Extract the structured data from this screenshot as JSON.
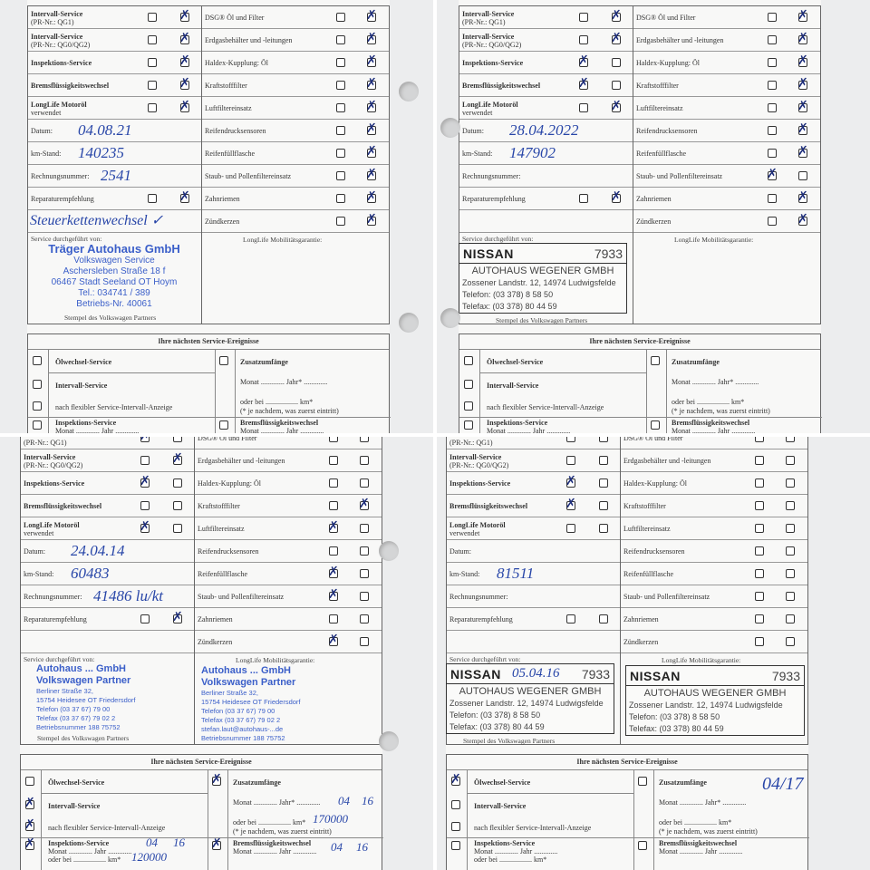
{
  "form": {
    "left_items": [
      {
        "label": "Intervall-Service",
        "sub": "(PR-Nr.: QG1)"
      },
      {
        "label": "Intervall-Service",
        "sub": "(PR-Nr.: QG0/QG2)"
      },
      {
        "label": "Inspektions-Service",
        "sub": ""
      },
      {
        "label": "Bremsflüssigkeitswechsel",
        "sub": ""
      },
      {
        "label": "LongLife Motoröl",
        "sub": "verwendet"
      }
    ],
    "fields": [
      "Datum:",
      "km-Stand:",
      "Rechnungsnummer:"
    ],
    "repair_label": "Reparaturempfehlung",
    "service_by_label": "Service durchgeführt von:",
    "stamp_caption": "Stempel des Volkswagen Partners",
    "right_items": [
      "DSG® Öl und Filter",
      "Erdgasbehälter und -leitungen",
      "Haldex-Kupplung: Öl",
      "Kraftstofffilter",
      "Luftfiltereinsatz",
      "Reifendrucksensoren",
      "Reifenfüllflasche",
      "Staub- und Pollenfiltereinsatz",
      "Zahnriemen",
      "Zündkerzen"
    ],
    "guarantee_label": "LongLife Mobilitätsgarantie:",
    "next": {
      "title": "Ihre nächsten Service-Ereignisse",
      "oil": "Ölwechsel-Service",
      "interval": "Intervall-Service",
      "flex": "nach flexibler Service-Intervall-Anzeige",
      "inspection": "Inspektions-Service",
      "extra": "Zusatzumfänge",
      "month_year": "Monat ............. Jahr* .............",
      "or_km": "oder bei .................. km*",
      "note": "(* je nachdem, was zuerst eintritt)",
      "brake": "Bremsflüssigkeitswechsel",
      "month_only": "Monat ............. Jahr .............",
      "insp_km": "oder bei .................. km*"
    }
  },
  "colors": {
    "ink": "#2846a8",
    "stamp_blue": "#3b5fc9",
    "stamp_gray": "#444444"
  },
  "panels": [
    {
      "left_checks": [
        [
          0,
          1
        ],
        [
          0,
          1
        ],
        [
          0,
          1
        ],
        [
          0,
          1
        ],
        [
          0,
          1
        ]
      ],
      "repair_checks": [
        0,
        1
      ],
      "right_checks": [
        [
          0,
          1
        ],
        [
          0,
          1
        ],
        [
          0,
          1
        ],
        [
          0,
          1
        ],
        [
          0,
          1
        ],
        [
          0,
          1
        ],
        [
          0,
          1
        ],
        [
          0,
          1
        ],
        [
          0,
          1
        ],
        [
          0,
          1
        ]
      ],
      "handwriting": {
        "date": "04.08.21",
        "km": "140235",
        "invoice": "2541",
        "note": "Steuerkettenwechsel ✓"
      },
      "stamp": {
        "type": "vw",
        "name": "Träger Autohaus GmbH",
        "lines": [
          "Volkswagen Service",
          "Aschersleben Straße 18 f",
          "06467 Stadt Seeland  OT Hoym",
          "Tel.: 034741 / 389",
          "Betriebs-Nr. 40061"
        ]
      },
      "next_checks": [
        0,
        0,
        0,
        0,
        0,
        0
      ],
      "next_hw": {}
    },
    {
      "left_checks": [
        [
          0,
          1
        ],
        [
          0,
          1
        ],
        [
          1,
          0
        ],
        [
          1,
          0
        ],
        [
          0,
          1
        ]
      ],
      "repair_checks": [
        0,
        1
      ],
      "right_checks": [
        [
          0,
          1
        ],
        [
          0,
          1
        ],
        [
          0,
          1
        ],
        [
          0,
          1
        ],
        [
          0,
          1
        ],
        [
          0,
          1
        ],
        [
          0,
          1
        ],
        [
          1,
          0
        ],
        [
          0,
          1
        ],
        [
          0,
          1
        ]
      ],
      "handwriting": {
        "date": "28.04.2022",
        "km": "147902",
        "invoice": "",
        "note": ""
      },
      "stamp": {
        "type": "nissan",
        "logo": "NISSAN",
        "number": "7933",
        "name": "AUTOHAUS WEGENER GMBH",
        "lines": [
          "Zossener Landstr. 12, 14974 Ludwigsfelde",
          "Telefon: (03 378) 8 58 50",
          "Telefax: (03 378) 80 44 59"
        ]
      },
      "next_checks": [
        0,
        0,
        0,
        0,
        0,
        0
      ],
      "next_hw": {}
    },
    {
      "left_checks": [
        [
          1,
          0
        ],
        [
          0,
          1
        ],
        [
          1,
          0
        ],
        [
          0,
          0
        ],
        [
          1,
          0
        ]
      ],
      "repair_checks": [
        0,
        1
      ],
      "right_checks": [
        [
          0,
          0
        ],
        [
          0,
          0
        ],
        [
          0,
          0
        ],
        [
          0,
          1
        ],
        [
          1,
          0
        ],
        [
          0,
          0
        ],
        [
          1,
          0
        ],
        [
          1,
          0
        ],
        [
          0,
          0
        ],
        [
          1,
          0
        ]
      ],
      "handwriting": {
        "date": "24.04.14",
        "km": "60483",
        "invoice": "41486 lu/kt",
        "note": ""
      },
      "stamp": {
        "type": "vw2",
        "name": "Autohaus ... GmbH",
        "sub": "Volkswagen Partner",
        "lines": [
          "Berliner Straße 32,",
          "15754 Heidesee OT Friedersdorf",
          "Telefon (03 37 67) 79 00",
          "Telefax (03 37 67) 79 02 2",
          "Betriebsnummer 188 75752"
        ],
        "email": "stefan.laut@autohaus-...de"
      },
      "next_checks": [
        0,
        1,
        1,
        1,
        1,
        1
      ],
      "next_hw": {
        "extra_month": "04",
        "extra_year": "16",
        "extra_km": "170000",
        "insp_month": "04",
        "insp_year": "16",
        "insp_km": "120000",
        "brake_month": "04",
        "brake_year": "16"
      }
    },
    {
      "left_checks": [
        [
          0,
          0
        ],
        [
          0,
          0
        ],
        [
          1,
          0
        ],
        [
          1,
          0
        ],
        [
          0,
          0
        ]
      ],
      "repair_checks": [
        0,
        0
      ],
      "right_checks": [
        [
          0,
          0
        ],
        [
          0,
          0
        ],
        [
          0,
          0
        ],
        [
          0,
          0
        ],
        [
          0,
          0
        ],
        [
          0,
          0
        ],
        [
          0,
          0
        ],
        [
          0,
          0
        ],
        [
          0,
          0
        ],
        [
          0,
          0
        ]
      ],
      "handwriting": {
        "date": "",
        "km": "81511",
        "invoice": "",
        "note": ""
      },
      "stamp": {
        "type": "nissan2",
        "logo": "NISSAN",
        "number": "7933",
        "hw_date": "05.04.16",
        "name": "AUTOHAUS WEGENER GMBH",
        "lines": [
          "Zossener Landstr. 12, 14974 Ludwigsfelde",
          "Telefon: (03 378) 8 58 50",
          "Telefax: (03 378) 80 44 59"
        ]
      },
      "next_checks": [
        1,
        0,
        0,
        0,
        0,
        0
      ],
      "next_hw": {
        "extra_date": "04/17"
      }
    }
  ]
}
